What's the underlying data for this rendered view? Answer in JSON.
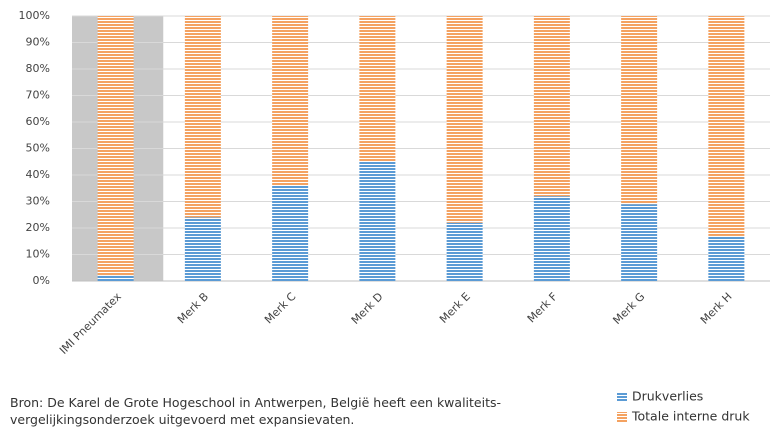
{
  "chart_data": {
    "type": "stacked_bar",
    "categories": [
      "IMI Pneumatex",
      "Merk B",
      "Merk C",
      "Merk D",
      "Merk E",
      "Merk F",
      "Merk G",
      "Merk H"
    ],
    "series": [
      {
        "name": "Drukverlies",
        "color": "#5b9bd5",
        "values": [
          2,
          24,
          36,
          45,
          22,
          32,
          29,
          17
        ]
      },
      {
        "name": "Totale interne druk",
        "color": "#f4a261",
        "values": [
          98,
          76,
          64,
          55,
          78,
          68,
          71,
          83
        ]
      }
    ],
    "ylim": [
      0,
      100
    ],
    "yticks": [
      {
        "value": 0,
        "label": "0%"
      },
      {
        "value": 10,
        "label": "10%"
      },
      {
        "value": 20,
        "label": "20%"
      },
      {
        "value": 30,
        "label": "30%"
      },
      {
        "value": 40,
        "label": "40%"
      },
      {
        "value": 50,
        "label": "50%"
      },
      {
        "value": 60,
        "label": "60%"
      },
      {
        "value": 70,
        "label": "70%"
      },
      {
        "value": 80,
        "label": "80%"
      },
      {
        "value": 90,
        "label": "90%"
      },
      {
        "value": 100,
        "label": "100%"
      }
    ],
    "grid": true,
    "source": "Bron: De Karel de Grote Hogeschool in Antwerpen, België heeft een kwaliteits-vergelijkingsonderzoek uitgevoerd met expansievaten."
  }
}
